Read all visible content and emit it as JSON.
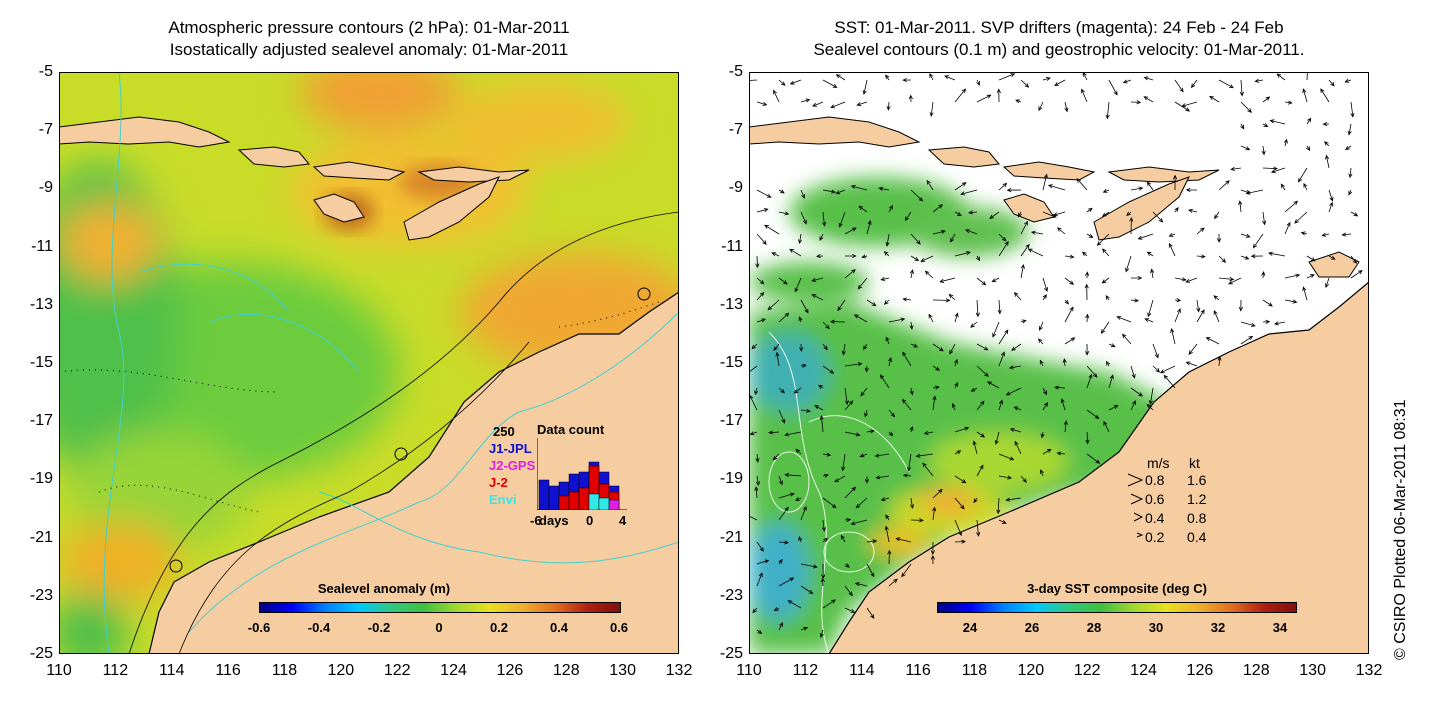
{
  "left_panel": {
    "title_line1": "Atmospheric pressure contours (2 hPa): 01-Mar-2011",
    "title_line2": "Isostatically adjusted sealevel anomaly: 01-Mar-2011",
    "colorbar": {
      "title": "Sealevel anomaly (m)",
      "labels": [
        "-0.6",
        "-0.4",
        "-0.2",
        "0",
        "0.2",
        "0.4",
        "0.6"
      ],
      "range": [
        -0.6,
        0.6
      ]
    },
    "data_count_inset": {
      "title": "Data count",
      "max_label": "250",
      "series": [
        {
          "name": "J1-JPL",
          "color": "#1010d0"
        },
        {
          "name": "J2-GPS",
          "color": "#e020e0"
        },
        {
          "name": "J-2",
          "color": "#e00000"
        },
        {
          "name": "Envi",
          "color": "#30e8e8"
        }
      ],
      "x_labels": [
        "-6",
        "days",
        "0",
        "4"
      ]
    }
  },
  "right_panel": {
    "title_line1": "SST: 01-Mar-2011. SVP drifters (magenta): 24 Feb - 24 Feb",
    "title_line2": "Sealevel contours (0.1 m) and geostrophic velocity: 01-Mar-2011.",
    "colorbar": {
      "title": "3-day SST composite (deg C)",
      "labels": [
        "24",
        "26",
        "28",
        "30",
        "32",
        "34"
      ],
      "range": [
        23,
        34.5
      ]
    },
    "velocity_legend": {
      "header_ms": "m/s",
      "header_kt": "kt",
      "rows": [
        {
          "ms": "0.8",
          "kt": "1.6"
        },
        {
          "ms": "0.6",
          "kt": "1.2"
        },
        {
          "ms": "0.4",
          "kt": "0.8"
        },
        {
          "ms": "0.2",
          "kt": "0.4"
        }
      ]
    }
  },
  "axes": {
    "y_labels": [
      "-5",
      "-7",
      "-9",
      "-11",
      "-13",
      "-15",
      "-17",
      "-19",
      "-21",
      "-23",
      "-25"
    ],
    "x_labels": [
      "110",
      "112",
      "114",
      "116",
      "118",
      "120",
      "122",
      "124",
      "126",
      "128",
      "130",
      "132"
    ],
    "lat_range": [
      -25,
      -5
    ],
    "lon_range": [
      110,
      132
    ]
  },
  "credit": "© CSIRO Plotted 06-Mar-2011 08:31",
  "colors": {
    "land": "#f6cda0",
    "ocean_anomaly_base": "#c8dc28",
    "contour_cyan": "#40d0d0",
    "sst_base": "#58c048"
  }
}
